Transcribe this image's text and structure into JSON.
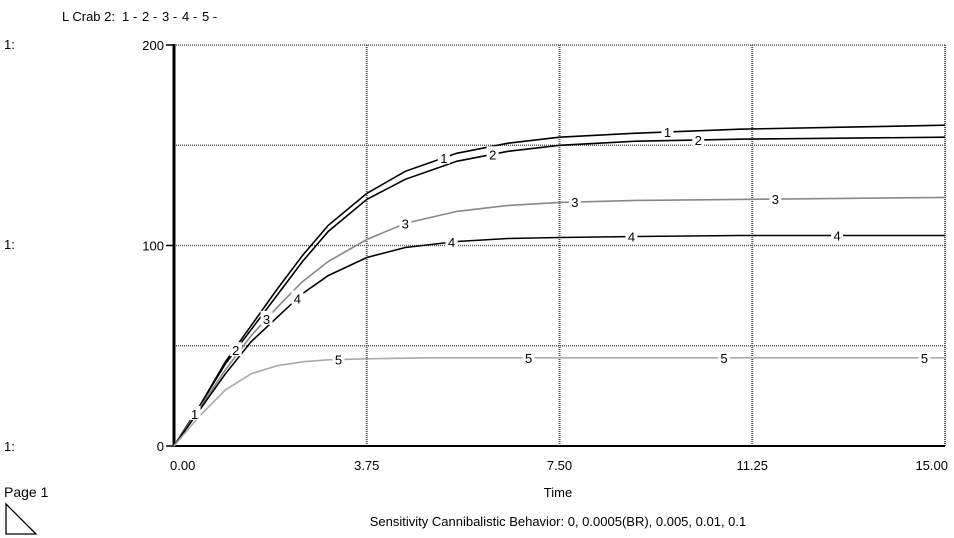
{
  "header": {
    "variable": "L Crab 2:",
    "run_labels": [
      {
        "text": "1 -",
        "color": "#000000"
      },
      {
        "text": "2 -",
        "color": "#000000"
      },
      {
        "text": "3 -",
        "color": "#888888"
      },
      {
        "text": "4 -",
        "color": "#000000"
      },
      {
        "text": "5 -",
        "color": "#aaaaaa"
      }
    ]
  },
  "axis_prefix": "1:",
  "page_label": "Page 1",
  "chart_data": {
    "type": "line",
    "title": "Sensitivity Cannibalistic Behavior: 0, 0.0005(BR), 0.005, 0.01, 0.1",
    "xlabel": "Time",
    "x_ticks": [
      "0.00",
      "3.75",
      "7.50",
      "11.25",
      "15.00"
    ],
    "y_ticks": [
      "0",
      "100",
      "200"
    ],
    "xlim": [
      0,
      15
    ],
    "ylim": [
      0,
      200
    ],
    "grid": true,
    "series": [
      {
        "name": "1",
        "color": "#000000",
        "x": [
          0,
          0.5,
          1,
          1.5,
          2,
          2.5,
          3,
          3.75,
          4.5,
          5.5,
          6.5,
          7.5,
          9,
          11,
          13,
          15
        ],
        "y": [
          0,
          20,
          42,
          60,
          78,
          95,
          110,
          126,
          137,
          146,
          151,
          154,
          156,
          158,
          159,
          160
        ]
      },
      {
        "name": "2",
        "color": "#000000",
        "x": [
          0,
          0.5,
          1,
          1.5,
          2,
          2.5,
          3,
          3.75,
          4.5,
          5.5,
          6.5,
          7.5,
          9,
          11,
          13,
          15
        ],
        "y": [
          0,
          20,
          41,
          58,
          75,
          92,
          107,
          123,
          133,
          142,
          147,
          150,
          152,
          153,
          153.5,
          154
        ]
      },
      {
        "name": "3",
        "color": "#888888",
        "x": [
          0,
          0.5,
          1,
          1.5,
          2,
          2.5,
          3,
          3.75,
          4.5,
          5.5,
          6.5,
          7.5,
          9,
          11,
          13,
          15
        ],
        "y": [
          0,
          19,
          38,
          55,
          69,
          82,
          92,
          103,
          111,
          117,
          120,
          121.5,
          122.5,
          123,
          123.5,
          124
        ]
      },
      {
        "name": "4",
        "color": "#000000",
        "x": [
          0,
          0.5,
          1,
          1.5,
          2,
          2.5,
          3,
          3.75,
          4.5,
          5.5,
          6.5,
          7.5,
          9,
          11,
          13,
          15
        ],
        "y": [
          0,
          18,
          36,
          52,
          64,
          76,
          85,
          94,
          99,
          102,
          103.5,
          104,
          104.5,
          105,
          105,
          105
        ]
      },
      {
        "name": "5",
        "color": "#aaaaaa",
        "x": [
          0,
          0.5,
          1,
          1.5,
          2,
          2.5,
          3,
          3.75,
          5,
          7.5,
          11.25,
          15
        ],
        "y": [
          0,
          15,
          28,
          36,
          40,
          42,
          43,
          43.5,
          44,
          44,
          44,
          44
        ]
      }
    ]
  }
}
